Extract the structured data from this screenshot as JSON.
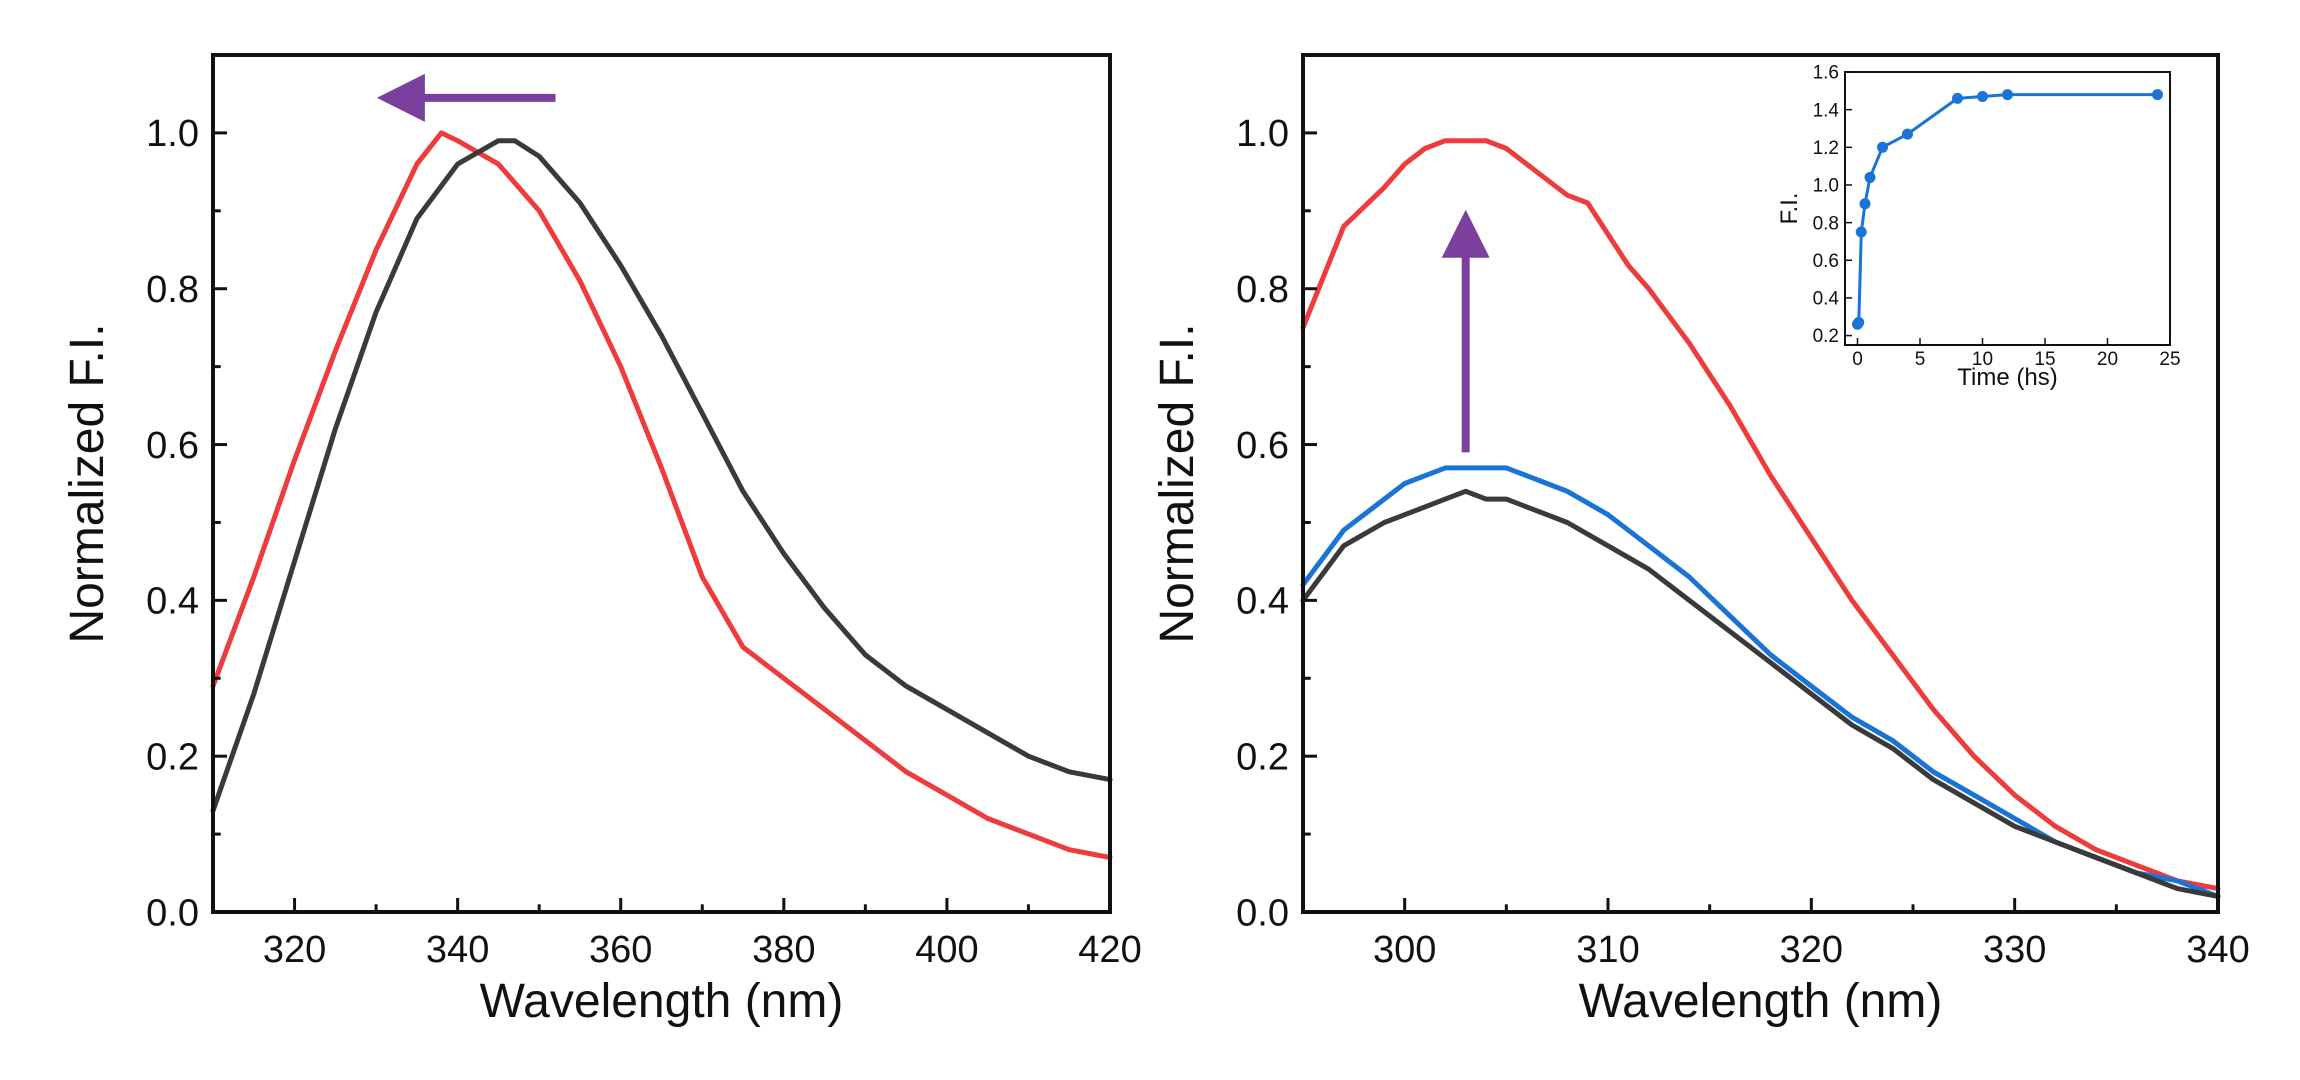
{
  "chart_data": [
    {
      "type": "line",
      "title": "",
      "xlabel": "Wavelength (nm)",
      "ylabel": "Normalized F.I.",
      "xlim": [
        310,
        420
      ],
      "ylim": [
        0.0,
        1.1
      ],
      "xticks": [
        320,
        340,
        360,
        380,
        400,
        420
      ],
      "yticks": [
        0.0,
        0.2,
        0.4,
        0.6,
        0.8,
        1.0
      ],
      "xtick_labels": [
        "320",
        "340",
        "360",
        "380",
        "400",
        "420"
      ],
      "ytick_labels": [
        "0.0",
        "0.2",
        "0.4",
        "0.6",
        "0.8",
        "1.0"
      ],
      "grid": false,
      "annotations": [
        {
          "type": "arrow",
          "direction": "left",
          "color": "#7b3f9e",
          "from": [
            352,
            1.045
          ],
          "to": [
            335,
            1.045
          ]
        }
      ],
      "series": [
        {
          "color": "#ee3b3b",
          "x": [
            310,
            315,
            320,
            325,
            330,
            335,
            338,
            340,
            345,
            350,
            355,
            360,
            365,
            370,
            375,
            380,
            385,
            390,
            395,
            400,
            405,
            410,
            415,
            420
          ],
          "y": [
            0.29,
            0.43,
            0.58,
            0.72,
            0.85,
            0.96,
            1.0,
            0.99,
            0.96,
            0.9,
            0.81,
            0.7,
            0.57,
            0.43,
            0.34,
            0.3,
            0.26,
            0.22,
            0.18,
            0.15,
            0.12,
            0.1,
            0.08,
            0.07
          ]
        },
        {
          "color": "#3a3a3a",
          "x": [
            310,
            315,
            320,
            325,
            330,
            335,
            340,
            345,
            347,
            350,
            355,
            360,
            365,
            370,
            375,
            380,
            385,
            390,
            395,
            400,
            405,
            410,
            415,
            420
          ],
          "y": [
            0.13,
            0.28,
            0.45,
            0.62,
            0.77,
            0.89,
            0.96,
            0.99,
            0.99,
            0.97,
            0.91,
            0.83,
            0.74,
            0.64,
            0.54,
            0.46,
            0.39,
            0.33,
            0.29,
            0.26,
            0.23,
            0.2,
            0.18,
            0.17
          ]
        }
      ]
    },
    {
      "type": "line",
      "title": "",
      "xlabel": "Wavelength (nm)",
      "ylabel": "Normalized F.I.",
      "xlim": [
        295,
        340
      ],
      "ylim": [
        0.0,
        1.1
      ],
      "xticks": [
        300,
        310,
        320,
        330,
        340
      ],
      "yticks": [
        0.0,
        0.2,
        0.4,
        0.6,
        0.8,
        1.0
      ],
      "xtick_labels": [
        "300",
        "310",
        "320",
        "330",
        "340"
      ],
      "ytick_labels": [
        "0.0",
        "0.2",
        "0.4",
        "0.6",
        "0.8",
        "1.0"
      ],
      "grid": false,
      "annotations": [
        {
          "type": "arrow",
          "direction": "up",
          "color": "#7b3f9e",
          "from": [
            303,
            0.59
          ],
          "to": [
            303,
            0.85
          ]
        }
      ],
      "series": [
        {
          "color": "#ee3b3b",
          "x": [
            295,
            297,
            299,
            300,
            301,
            302,
            303,
            304,
            305,
            306,
            307,
            308,
            309,
            310,
            311,
            312,
            314,
            316,
            318,
            320,
            322,
            324,
            326,
            328,
            330,
            332,
            334,
            336,
            338,
            340
          ],
          "y": [
            0.75,
            0.88,
            0.93,
            0.96,
            0.98,
            0.99,
            0.99,
            0.99,
            0.98,
            0.96,
            0.94,
            0.92,
            0.91,
            0.87,
            0.83,
            0.8,
            0.73,
            0.65,
            0.56,
            0.48,
            0.4,
            0.33,
            0.26,
            0.2,
            0.15,
            0.11,
            0.08,
            0.06,
            0.04,
            0.03
          ]
        },
        {
          "color": "#1a73d6",
          "x": [
            295,
            297,
            299,
            300,
            301,
            302,
            303,
            304,
            305,
            306,
            307,
            308,
            310,
            312,
            314,
            316,
            318,
            320,
            322,
            324,
            326,
            328,
            330,
            332,
            334,
            336,
            338,
            340
          ],
          "y": [
            0.42,
            0.49,
            0.53,
            0.55,
            0.56,
            0.57,
            0.57,
            0.57,
            0.57,
            0.56,
            0.55,
            0.54,
            0.51,
            0.47,
            0.43,
            0.38,
            0.33,
            0.29,
            0.25,
            0.22,
            0.18,
            0.15,
            0.12,
            0.09,
            0.07,
            0.05,
            0.04,
            0.02
          ]
        },
        {
          "color": "#3a3a3a",
          "x": [
            295,
            297,
            299,
            300,
            301,
            302,
            303,
            304,
            305,
            306,
            307,
            308,
            310,
            312,
            314,
            316,
            318,
            320,
            322,
            324,
            326,
            328,
            330,
            332,
            334,
            336,
            338,
            340
          ],
          "y": [
            0.4,
            0.47,
            0.5,
            0.51,
            0.52,
            0.53,
            0.54,
            0.53,
            0.53,
            0.52,
            0.51,
            0.5,
            0.47,
            0.44,
            0.4,
            0.36,
            0.32,
            0.28,
            0.24,
            0.21,
            0.17,
            0.14,
            0.11,
            0.09,
            0.07,
            0.05,
            0.03,
            0.02
          ]
        }
      ],
      "inset": {
        "type": "line",
        "xlabel": "Time (hs)",
        "ylabel": "F.I.",
        "xlim": [
          -1,
          25
        ],
        "ylim": [
          0.15,
          1.6
        ],
        "xticks": [
          0,
          5,
          10,
          15,
          20,
          25
        ],
        "yticks": [
          0.2,
          0.4,
          0.6,
          0.8,
          1.0,
          1.2,
          1.4,
          1.6
        ],
        "xtick_labels": [
          "0",
          "5",
          "10",
          "15",
          "20",
          "25"
        ],
        "ytick_labels": [
          "0.2",
          "0.4",
          "0.6",
          "0.8",
          "1.0",
          "1.2",
          "1.4",
          "1.6"
        ],
        "series": [
          {
            "color": "#1a73d6",
            "marker": "circle",
            "x": [
              0,
              0.1,
              0.3,
              0.6,
              1,
              2,
              4,
              8,
              10,
              12,
              24
            ],
            "y": [
              0.26,
              0.27,
              0.75,
              0.9,
              1.04,
              1.2,
              1.27,
              1.46,
              1.47,
              1.48,
              1.48
            ]
          }
        ]
      }
    }
  ]
}
